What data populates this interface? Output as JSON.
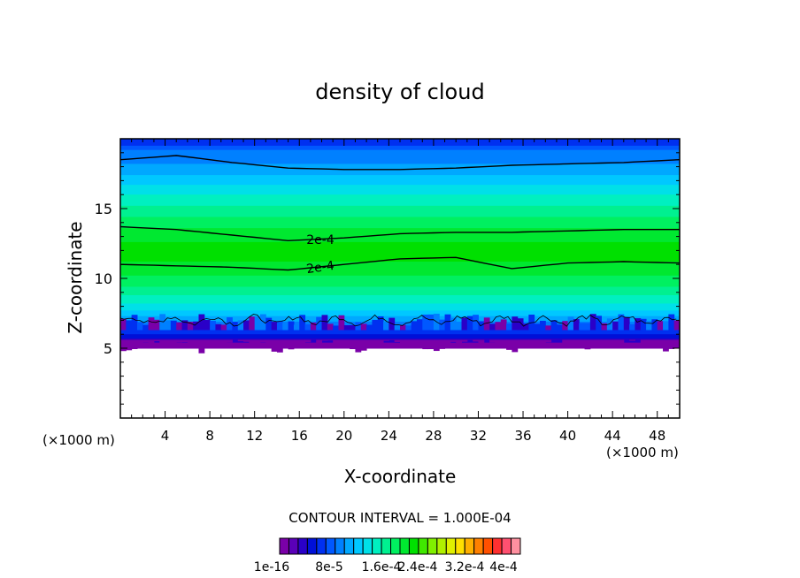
{
  "chart_data": {
    "type": "heatmap",
    "title": "density of cloud",
    "xlabel": "X-coordinate",
    "ylabel": "Z-coordinate",
    "x_unit_left": "(×1000 m)",
    "x_unit_right": "(×1000 m)",
    "xlim": [
      0,
      50
    ],
    "ylim": [
      0,
      20
    ],
    "x_ticks": [
      "4",
      "8",
      "12",
      "16",
      "20",
      "24",
      "28",
      "32",
      "36",
      "40",
      "44",
      "48"
    ],
    "y_ticks": [
      "5",
      "10",
      "15"
    ],
    "contour_interval_text": "CONTOUR INTERVAL = 1.000E-04",
    "contour_labels": [
      "2e-4",
      "2e-4"
    ],
    "colorbar_labels": [
      "1e-16",
      "8e-5",
      "1.6e-4",
      "2.4e-4",
      "3.2e-4",
      "4e-4"
    ],
    "colorbar_colors": [
      "#7a00a8",
      "#5a00b8",
      "#2a00c8",
      "#0010d8",
      "#0030f0",
      "#0058ff",
      "#0080ff",
      "#00a8ff",
      "#00c8ff",
      "#00e0e8",
      "#00f0c0",
      "#00f090",
      "#00f060",
      "#00e830",
      "#00e000",
      "#40e800",
      "#80f000",
      "#b0f000",
      "#e0f000",
      "#ffe000",
      "#ffb000",
      "#ff8000",
      "#ff5000",
      "#ff3030",
      "#ff5070",
      "#ff90a0"
    ],
    "cloud_base_km": 5.0,
    "cloud_top_km": 20,
    "density_max": 0.00023,
    "contour_z_upper_km": [
      13.7,
      13.5,
      13.1,
      12.7,
      12.9,
      13.2,
      13.3,
      13.3,
      13.4,
      13.5,
      13.5
    ],
    "contour_z_lower_km": [
      11.0,
      10.9,
      10.8,
      10.6,
      11.0,
      11.4,
      11.5,
      10.7,
      11.1,
      11.2,
      11.1
    ],
    "contour_z_top_km": [
      18.5,
      18.8,
      18.3,
      17.9,
      17.8,
      17.8,
      17.9,
      18.1,
      18.2,
      18.3,
      18.5
    ],
    "contour_x_km": [
      0,
      5,
      10,
      15,
      20,
      25,
      30,
      35,
      40,
      45,
      50
    ]
  }
}
